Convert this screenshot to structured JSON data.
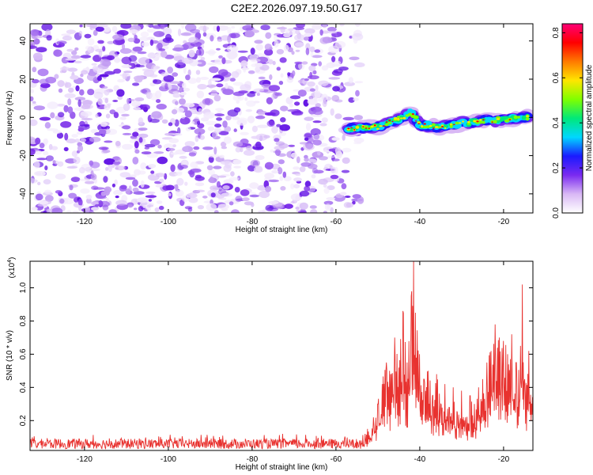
{
  "figure": {
    "title": "C2E2.2026.097.19.50.G17"
  },
  "chart_data": [
    {
      "type": "heatmap",
      "xlabel": "Height of straight line (km)",
      "ylabel": "Frequency (Hz)",
      "xlim": [
        -133,
        -13
      ],
      "ylim": [
        -50,
        49
      ],
      "xticks": [
        -120,
        -100,
        -80,
        -60,
        -40,
        -20
      ],
      "yticks": [
        -40,
        -20,
        0,
        20,
        40
      ],
      "noise_region_x": [
        -133,
        -54
      ],
      "noise_region_y": [
        -50,
        49
      ],
      "signal_track": [
        {
          "x": -57,
          "y": -6
        },
        {
          "x": -50,
          "y": -5
        },
        {
          "x": -44,
          "y": 0
        },
        {
          "x": -42,
          "y": 3
        },
        {
          "x": -40,
          "y": -4
        },
        {
          "x": -35,
          "y": -5
        },
        {
          "x": -30,
          "y": -3
        },
        {
          "x": -25,
          "y": -2
        },
        {
          "x": -20,
          "y": -1
        },
        {
          "x": -14,
          "y": 0
        }
      ],
      "colorbar": {
        "label": "Normalized spectral amplitude",
        "range": [
          0,
          0.84
        ],
        "ticks": [
          0.0,
          0.2,
          0.4,
          0.6,
          0.8
        ],
        "tick_labels": [
          "0.0",
          "0.2",
          "0.4",
          "0.6",
          "0.8"
        ],
        "colors": [
          "#ffffff",
          "#d9b8f5",
          "#7a2af0",
          "#1a1aff",
          "#00d7ff",
          "#00e87a",
          "#7fff00",
          "#ffe600",
          "#ff7a00",
          "#ff0000",
          "#ff0077"
        ]
      }
    },
    {
      "type": "line",
      "xlabel": "Height of straight line (km)",
      "ylabel": "SNR (10 * v/v)",
      "y_multiplier": "(x10",
      "y_multiplier_exp": "4",
      "y_multiplier_close": ")",
      "xlim": [
        -133,
        -13
      ],
      "ylim": [
        0.02,
        1.16
      ],
      "xticks": [
        -120,
        -100,
        -80,
        -60,
        -40,
        -20
      ],
      "yticks": [
        0.2,
        0.4,
        0.6,
        0.8,
        1.0
      ],
      "ytick_labels": [
        "0.2",
        "0.4",
        "0.6",
        "0.8",
        "1.0"
      ],
      "color": "#e8322f",
      "series": [
        {
          "x": [
            -133,
            -128,
            -123,
            -118,
            -113,
            -108,
            -103,
            -98,
            -93,
            -88,
            -83,
            -78,
            -73,
            -68,
            -63,
            -58,
            -55,
            -53,
            -51,
            -50,
            -49,
            -48,
            -47,
            -46,
            -45,
            -44,
            -43,
            -42,
            -41.5,
            -41,
            -40,
            -39,
            -38,
            -37,
            -36,
            -35,
            -34,
            -33,
            -32,
            -31,
            -30,
            -29,
            -28,
            -27,
            -26,
            -25,
            -24,
            -23,
            -22,
            -21,
            -20,
            -19,
            -18,
            -17,
            -16,
            -15.5,
            -15,
            -14,
            -13
          ],
          "values": [
            0.06,
            0.06,
            0.06,
            0.06,
            0.06,
            0.06,
            0.06,
            0.06,
            0.07,
            0.06,
            0.06,
            0.06,
            0.06,
            0.06,
            0.06,
            0.06,
            0.08,
            0.12,
            0.22,
            0.3,
            0.42,
            0.55,
            0.48,
            0.7,
            0.52,
            0.86,
            0.55,
            0.95,
            1.16,
            0.85,
            0.6,
            0.45,
            0.5,
            0.35,
            0.48,
            0.3,
            0.42,
            0.28,
            0.4,
            0.25,
            0.38,
            0.22,
            0.35,
            0.3,
            0.4,
            0.45,
            0.55,
            0.62,
            0.78,
            0.7,
            0.68,
            0.6,
            0.72,
            0.55,
            0.65,
            1.02,
            0.45,
            0.62,
            0.55
          ]
        }
      ]
    }
  ]
}
